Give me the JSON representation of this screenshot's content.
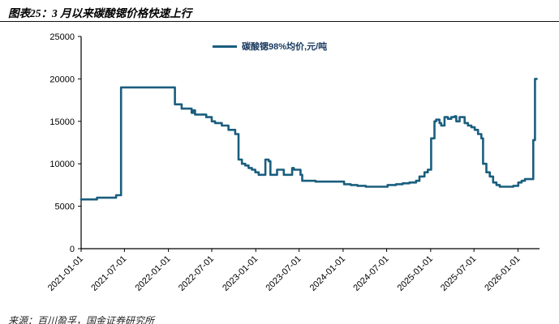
{
  "page": {
    "title": "图表25：3 月以来碳酸锶价格快速上行",
    "source": "来源：百川盈孚，国金证券研究所"
  },
  "chart_data": {
    "type": "line",
    "title": "图表25：3 月以来碳酸锶价格快速上行",
    "xlabel": "",
    "ylabel": "",
    "ylim": [
      0,
      25000
    ],
    "yticks": [
      0,
      5000,
      10000,
      15000,
      20000,
      25000
    ],
    "xticks": [
      "2021-01-01",
      "2021-07-01",
      "2022-01-01",
      "2022-07-01",
      "2023-01-01",
      "2023-07-01",
      "2024-01-01",
      "2024-07-01",
      "2025-01-01",
      "2025-07-01",
      "2026-01-01"
    ],
    "x_domain": [
      "2021-01-01",
      "2026-04-01"
    ],
    "grid": false,
    "legend_position": "top-center",
    "step_interpolation": true,
    "colors": {
      "line": "#1A5E7E",
      "legend_text": "#17375E",
      "axis": "#000000"
    },
    "series": [
      {
        "name": "碳酸锶98%均价,元/吨",
        "color": "#1A5E7E",
        "points": [
          [
            "2021-01-01",
            5800
          ],
          [
            "2021-03-01",
            5800
          ],
          [
            "2021-03-08",
            6000
          ],
          [
            "2021-05-20",
            6000
          ],
          [
            "2021-05-27",
            6300
          ],
          [
            "2021-06-10",
            6300
          ],
          [
            "2021-06-17",
            19000
          ],
          [
            "2022-01-21",
            19000
          ],
          [
            "2022-01-28",
            17000
          ],
          [
            "2022-02-18",
            17000
          ],
          [
            "2022-02-25",
            16500
          ],
          [
            "2022-04-01",
            16500
          ],
          [
            "2022-04-08",
            16000
          ],
          [
            "2022-04-15",
            16300
          ],
          [
            "2022-04-22",
            15800
          ],
          [
            "2022-06-01",
            15800
          ],
          [
            "2022-06-08",
            15500
          ],
          [
            "2022-07-01",
            15000
          ],
          [
            "2022-07-15",
            14800
          ],
          [
            "2022-08-05",
            14800
          ],
          [
            "2022-08-12",
            14500
          ],
          [
            "2022-09-02",
            14500
          ],
          [
            "2022-09-09",
            14000
          ],
          [
            "2022-09-30",
            14000
          ],
          [
            "2022-10-07",
            13500
          ],
          [
            "2022-10-14",
            13500
          ],
          [
            "2022-10-21",
            10500
          ],
          [
            "2022-11-04",
            10000
          ],
          [
            "2022-11-18",
            9800
          ],
          [
            "2022-12-02",
            9500
          ],
          [
            "2022-12-16",
            9300
          ],
          [
            "2022-12-30",
            9000
          ],
          [
            "2023-01-13",
            8700
          ],
          [
            "2023-02-03",
            8700
          ],
          [
            "2023-02-10",
            10500
          ],
          [
            "2023-02-24",
            10300
          ],
          [
            "2023-03-03",
            8700
          ],
          [
            "2023-03-24",
            8700
          ],
          [
            "2023-03-31",
            9300
          ],
          [
            "2023-04-21",
            9300
          ],
          [
            "2023-04-28",
            8700
          ],
          [
            "2023-05-26",
            8700
          ],
          [
            "2023-06-02",
            9500
          ],
          [
            "2023-06-09",
            9300
          ],
          [
            "2023-06-30",
            9300
          ],
          [
            "2023-07-07",
            8700
          ],
          [
            "2023-07-14",
            8000
          ],
          [
            "2023-09-01",
            8000
          ],
          [
            "2023-09-08",
            7900
          ],
          [
            "2023-12-29",
            7900
          ],
          [
            "2024-01-05",
            7600
          ],
          [
            "2024-02-02",
            7500
          ],
          [
            "2024-03-01",
            7400
          ],
          [
            "2024-04-05",
            7300
          ],
          [
            "2024-06-28",
            7300
          ],
          [
            "2024-07-05",
            7500
          ],
          [
            "2024-08-02",
            7500
          ],
          [
            "2024-08-09",
            7600
          ],
          [
            "2024-09-06",
            7700
          ],
          [
            "2024-10-04",
            7800
          ],
          [
            "2024-11-01",
            8000
          ],
          [
            "2024-11-15",
            8500
          ],
          [
            "2024-12-06",
            9000
          ],
          [
            "2024-12-20",
            9300
          ],
          [
            "2025-01-03",
            13000
          ],
          [
            "2025-01-17",
            15000
          ],
          [
            "2025-01-24",
            15200
          ],
          [
            "2025-02-07",
            14800
          ],
          [
            "2025-02-14",
            14500
          ],
          [
            "2025-02-28",
            15500
          ],
          [
            "2025-03-14",
            15300
          ],
          [
            "2025-03-28",
            15500
          ],
          [
            "2025-04-11",
            15600
          ],
          [
            "2025-04-18",
            15000
          ],
          [
            "2025-05-02",
            15500
          ],
          [
            "2025-05-16",
            15500
          ],
          [
            "2025-05-23",
            14800
          ],
          [
            "2025-06-06",
            14500
          ],
          [
            "2025-06-20",
            14300
          ],
          [
            "2025-07-04",
            14000
          ],
          [
            "2025-07-18",
            13500
          ],
          [
            "2025-08-01",
            13000
          ],
          [
            "2025-08-08",
            10000
          ],
          [
            "2025-08-22",
            9000
          ],
          [
            "2025-09-05",
            8500
          ],
          [
            "2025-09-19",
            7800
          ],
          [
            "2025-10-03",
            7500
          ],
          [
            "2025-10-17",
            7300
          ],
          [
            "2025-11-28",
            7300
          ],
          [
            "2025-12-12",
            7400
          ],
          [
            "2026-01-02",
            7800
          ],
          [
            "2026-01-16",
            8000
          ],
          [
            "2026-01-30",
            8200
          ],
          [
            "2026-02-27",
            8200
          ],
          [
            "2026-03-06",
            12800
          ],
          [
            "2026-03-13",
            20000
          ],
          [
            "2026-03-20",
            20000
          ]
        ]
      }
    ]
  }
}
